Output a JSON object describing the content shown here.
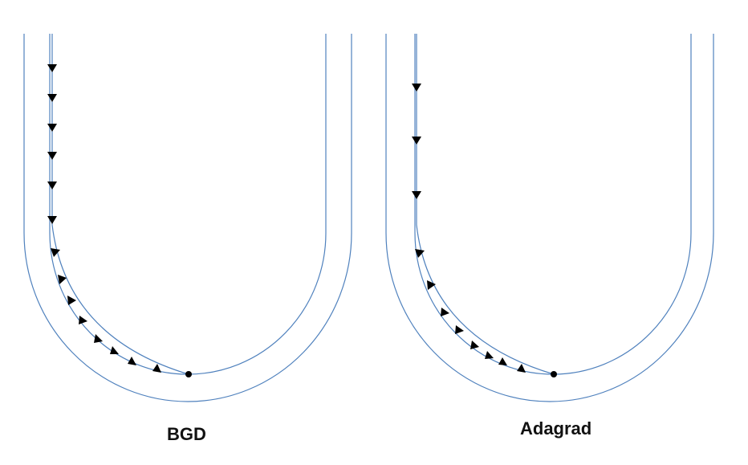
{
  "panels": [
    {
      "label": "BGD"
    },
    {
      "label": "Adagrad"
    }
  ],
  "colors": {
    "contour": "#4f81bd",
    "path": "#4f81bd",
    "arrow": "#000000",
    "endpoint": "#000000"
  }
}
